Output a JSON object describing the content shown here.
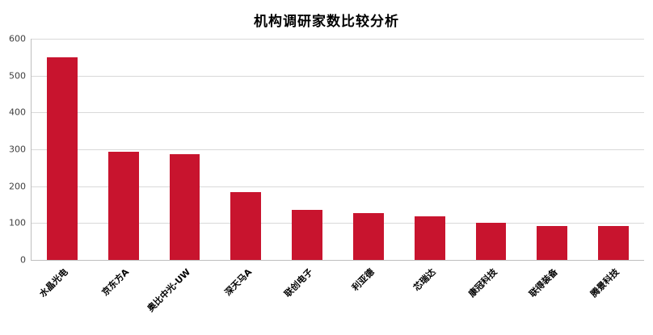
{
  "chart_data": {
    "type": "bar",
    "title": "机构调研家数比较分析",
    "categories": [
      "水晶光电",
      "京东方A",
      "奥比中光-UW",
      "深天马A",
      "联创电子",
      "利亚德",
      "芯瑞达",
      "康冠科技",
      "联得装备",
      "腾景科技"
    ],
    "values": [
      550,
      293,
      287,
      185,
      135,
      128,
      119,
      100,
      92,
      92
    ],
    "xlabel": "",
    "ylabel": "",
    "ylim": [
      0,
      600
    ],
    "ytick_step": 100,
    "yticks": [
      0,
      100,
      200,
      300,
      400,
      500,
      600
    ],
    "grid": "horizontal",
    "legend": "none",
    "bar_color": "#c8142e",
    "gridline_color": "#d9d9d9",
    "axis_color": "#bfbfbf",
    "label_rotation_deg": -45
  }
}
